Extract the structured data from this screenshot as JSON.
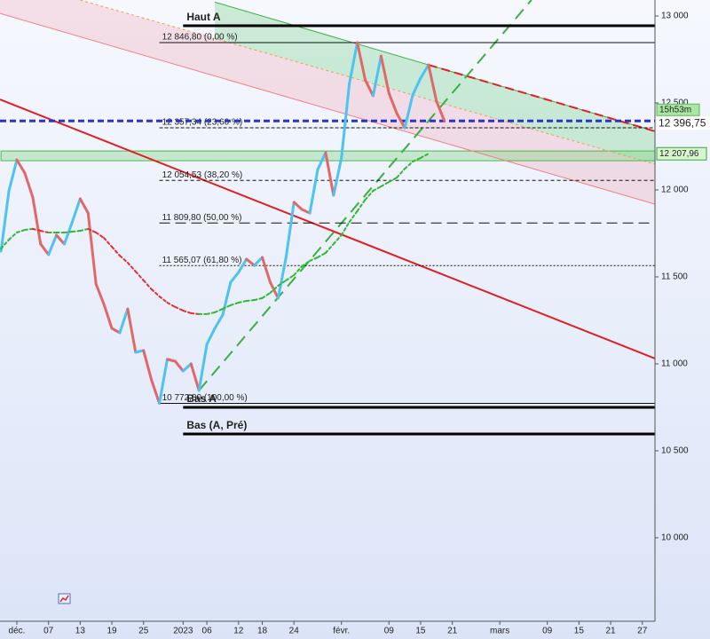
{
  "chart_data": {
    "type": "line",
    "x": [
      -2,
      -1,
      0,
      1,
      2,
      3,
      4,
      5,
      6,
      7,
      8,
      9,
      10,
      11,
      12,
      13,
      14,
      15,
      16,
      17,
      18,
      19,
      20,
      21,
      22,
      23,
      24,
      25,
      26,
      27,
      28,
      29,
      30,
      31,
      32,
      33,
      34,
      35,
      36,
      37,
      38,
      39,
      40,
      41,
      42,
      43,
      44,
      45,
      46,
      47,
      48,
      49,
      50,
      51,
      52,
      53,
      54
    ],
    "series": [
      {
        "values": [
          11648,
          11995,
          12173,
          12097,
          11959,
          11689,
          11628,
          11740,
          11689,
          11816,
          11949,
          11867,
          11459,
          11342,
          11204,
          11179,
          11316,
          11066,
          11077,
          10908,
          10773,
          11026,
          11015,
          10959,
          11000,
          10847,
          11112,
          11204,
          11281,
          11469,
          11526,
          11602,
          11566,
          11612,
          11469,
          11378,
          11612,
          11929,
          11888,
          11867,
          12117,
          12214,
          11969,
          12184,
          12612,
          12847,
          12633,
          12541,
          12770,
          12556,
          12439,
          12357,
          12546,
          12643,
          12719,
          12510,
          12397
        ],
        "up_color": "#4cc3f0",
        "down_color": "#e06868",
        "width": 3
      },
      {
        "values": [
          11663,
          11714,
          11755,
          11770,
          11776,
          11765,
          11755,
          11755,
          11755,
          11760,
          11765,
          11776,
          11755,
          11724,
          11673,
          11622,
          11582,
          11531,
          11480,
          11429,
          11388,
          11352,
          11327,
          11306,
          11291,
          11286,
          11286,
          11296,
          11316,
          11337,
          11352,
          11362,
          11367,
          11378,
          11408,
          11449,
          11480,
          11510,
          11561,
          11592,
          11612,
          11638,
          11689,
          11740,
          11816,
          11878,
          11944,
          11995,
          12020,
          12046,
          12071,
          12122,
          12163,
          12184,
          12208,
          null,
          null
        ],
        "up_color": "#33b833",
        "down_color": "#e53030",
        "width": 2,
        "dash": "3 3"
      }
    ],
    "xlim": [
      -2.13,
      80.6
    ],
    "ylim": [
      9520,
      13092
    ],
    "xticks": [
      {
        "value": 0,
        "label": "déc."
      },
      {
        "value": 4,
        "label": "07"
      },
      {
        "value": 8,
        "label": "13"
      },
      {
        "value": 12,
        "label": "19"
      },
      {
        "value": 16,
        "label": "25"
      },
      {
        "value": 21,
        "label": "2023"
      },
      {
        "value": 24,
        "label": "06"
      },
      {
        "value": 28,
        "label": "12"
      },
      {
        "value": 31,
        "label": "18"
      },
      {
        "value": 35,
        "label": "24"
      },
      {
        "value": 41,
        "label": "févr."
      },
      {
        "value": 47,
        "label": "09"
      },
      {
        "value": 51,
        "label": "15"
      },
      {
        "value": 55,
        "label": "21"
      },
      {
        "value": 61,
        "label": "mars"
      },
      {
        "value": 67,
        "label": "09"
      },
      {
        "value": 71,
        "label": "15"
      },
      {
        "value": 75,
        "label": "21"
      },
      {
        "value": 79,
        "label": "27"
      }
    ],
    "yticks": [
      {
        "value": 10000,
        "label": "10 000"
      },
      {
        "value": 10500,
        "label": "10 500"
      },
      {
        "value": 11000,
        "label": "11 000"
      },
      {
        "value": 11500,
        "label": "11 500"
      },
      {
        "value": 12000,
        "label": "12 000"
      },
      {
        "value": 12500,
        "label": "12 500"
      },
      {
        "value": 13000,
        "label": "13 000"
      }
    ],
    "channel": {
      "upper": {
        "x": [
          25,
          80.6
        ],
        "values": [
          13080,
          12337
        ],
        "color": "#3cb043"
      },
      "middle": {
        "x": [
          8,
          80.6
        ],
        "values": [
          13092,
          12148
        ],
        "color": "#f0a050",
        "dash": "3 3"
      },
      "lower": {
        "x": [
          -2.13,
          80.6
        ],
        "values": [
          13015,
          11918
        ],
        "color": "#f08080"
      },
      "upper_fill": "rgba(90,200,110,0.28)",
      "lower_fill": "rgba(235,130,150,0.22)"
    },
    "trendlines": [
      {
        "x": [
          52,
          80.6
        ],
        "values": [
          12719,
          12337
        ],
        "color": "#e02020",
        "dash": "10 5",
        "width": 2
      },
      {
        "x": [
          -2.13,
          80.6
        ],
        "values": [
          12520,
          11031
        ],
        "color": "#e02020",
        "width": 2
      },
      {
        "x": [
          23,
          65
        ],
        "values": [
          10847,
          13092
        ],
        "color": "#3cb043",
        "dash": "14 8",
        "width": 2
      }
    ],
    "zone": {
      "x": [
        -2,
        80.6
      ],
      "values": [
        12168,
        12224
      ],
      "color": "rgba(120,210,120,0.35)",
      "border": "#4cb84c"
    },
    "fibonacci": [
      {
        "value": 12846.8,
        "label": "12 846,80 (0,00 %)"
      },
      {
        "value": 12357.34,
        "label": "12 357,34 (23,60 %)",
        "dash": "4 2"
      },
      {
        "value": 12054.53,
        "label": "12 054,53 (38,20 %)",
        "dash": "4 3"
      },
      {
        "value": 11809.8,
        "label": "11 809,80 (50,00 %)",
        "dash": "12 6"
      },
      {
        "value": 11565.07,
        "label": "11 565,07 (61,80 %)",
        "dash": "2 2"
      },
      {
        "value": 10772.8,
        "label": "10 772,80 (100,00 %)"
      }
    ],
    "fib_x_start": 18,
    "markers": [
      {
        "label": "Haut A",
        "value": 12944
      },
      {
        "label": "Bas A",
        "value": 10750
      },
      {
        "label": "Bas (A, Pré)",
        "value": 10597
      }
    ],
    "marker_x_start": 21,
    "last_price": {
      "value": 12396.75,
      "label": "12 396,75",
      "color": "#2b35c0",
      "time": "15h53m"
    },
    "ma_last": {
      "value": 12207.96,
      "label": "12 207,96",
      "color": "#33a833"
    }
  }
}
